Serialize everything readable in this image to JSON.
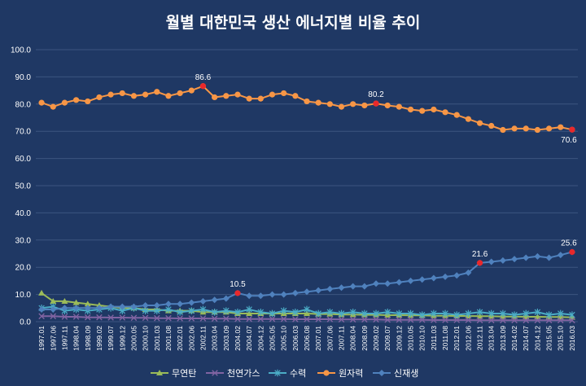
{
  "chart_data": {
    "type": "line",
    "title": "월별 대한민국 생산 에너지별 비율 추이",
    "xlabel": "",
    "ylabel": "",
    "ylim": [
      0,
      100
    ],
    "yticks": [
      "0.0",
      "10.0",
      "20.0",
      "30.0",
      "40.0",
      "50.0",
      "60.0",
      "70.0",
      "80.0",
      "90.0",
      "100.0"
    ],
    "grid": true,
    "legend_position": "bottom",
    "x_tick_labels": [
      "1997.01",
      "1997.06",
      "1997.11",
      "1998.04",
      "1998.09",
      "1999.02",
      "1999.07",
      "1999.12",
      "2000.05",
      "2000.10",
      "2001.03",
      "2001.08",
      "2002.01",
      "2002.06",
      "2002.11",
      "2003.04",
      "2003.09",
      "2004.02",
      "2004.07",
      "2004.12",
      "2005.05",
      "2005.10",
      "2006.03",
      "2006.08",
      "2007.01",
      "2007.06",
      "2007.11",
      "2008.04",
      "2008.09",
      "2009.02",
      "2009.07",
      "2009.12",
      "2010.05",
      "2010.10",
      "2011.03",
      "2011.08",
      "2012.01",
      "2012.06",
      "2012.11",
      "2013.04",
      "2013.09",
      "2014.02",
      "2014.07",
      "2014.12",
      "2015.05",
      "2015.10",
      "2016.03"
    ],
    "series": [
      {
        "name": "무연탄",
        "color": "#9bbb59",
        "marker": "triangle",
        "values": [
          10.5,
          7.5,
          7.5,
          7,
          6.5,
          6,
          5.5,
          5,
          5,
          4.5,
          4.5,
          4,
          4,
          4,
          3.5,
          3.5,
          3.5,
          3,
          3,
          3,
          3,
          3,
          3,
          3,
          2.8,
          2.8,
          2.6,
          2.6,
          2.5,
          2.5,
          2.4,
          2.4,
          2.3,
          2.3,
          2.2,
          2.2,
          2.1,
          2.1,
          2,
          2,
          1.9,
          1.9,
          1.8,
          1.8,
          1.7,
          1.7,
          1.6
        ]
      },
      {
        "name": "천연가스",
        "color": "#8064a2",
        "marker": "x",
        "values": [
          2,
          2,
          1.8,
          1.8,
          1.6,
          1.6,
          1.5,
          1.5,
          1.4,
          1.4,
          1.3,
          1.3,
          1.2,
          1.2,
          1.2,
          1.1,
          1.1,
          1,
          1,
          1,
          1,
          1,
          0.9,
          0.9,
          0.9,
          0.9,
          0.8,
          0.8,
          0.8,
          0.8,
          0.7,
          0.7,
          0.7,
          0.7,
          0.6,
          0.6,
          0.6,
          0.6,
          0.5,
          0.5,
          0.5,
          0.5,
          0.5,
          0.5,
          0.5,
          0.5,
          0.5
        ]
      },
      {
        "name": "수력",
        "color": "#4bacc6",
        "marker": "star",
        "values": [
          5,
          5.5,
          4,
          4.5,
          4,
          4.5,
          5,
          4,
          5,
          4,
          4,
          4.5,
          3.5,
          4,
          4.5,
          3.5,
          4,
          3.5,
          4.5,
          3.5,
          3,
          4,
          3.5,
          4.5,
          3,
          3.5,
          3,
          3.5,
          3,
          3,
          3.5,
          3,
          3,
          2.5,
          3,
          3,
          2.5,
          3,
          3.5,
          3,
          3,
          2.5,
          3,
          3.5,
          2.5,
          3,
          2.5
        ]
      },
      {
        "name": "원자력",
        "color": "#f79646",
        "marker": "circle",
        "values": [
          80.5,
          79,
          80.5,
          81.5,
          81,
          82.5,
          83.5,
          84,
          83,
          83.5,
          84.5,
          83,
          84,
          85,
          86.6,
          82.5,
          83,
          83.5,
          82,
          82,
          83.5,
          84,
          83,
          81,
          80.5,
          80,
          79,
          80,
          79.5,
          80.2,
          79.5,
          79,
          78,
          77.5,
          78,
          77,
          76,
          74.5,
          73,
          72,
          70.5,
          71,
          71,
          70.5,
          71,
          71.5,
          70.6
        ]
      },
      {
        "name": "신재생",
        "color": "#4f81bd",
        "marker": "diamond",
        "values": [
          4.5,
          4.5,
          5,
          5,
          5,
          5,
          5.5,
          5.5,
          5.5,
          6,
          6,
          6.5,
          6.5,
          7,
          7.5,
          8,
          8.5,
          10.5,
          9.5,
          9.5,
          10,
          10,
          10.5,
          11,
          11.5,
          12,
          12.5,
          13,
          13,
          14,
          14,
          14.5,
          15,
          15.5,
          16,
          16.5,
          17,
          18,
          21.6,
          22,
          22.5,
          23,
          23.5,
          24,
          23.5,
          24.5,
          25.6
        ]
      }
    ],
    "annotations": [
      {
        "series": "원자력",
        "x": "2002.11",
        "y": 86.6,
        "label": "86.6"
      },
      {
        "series": "원자력",
        "x": "2009.02",
        "y": 80.2,
        "label": "80.2"
      },
      {
        "series": "원자력",
        "x": "2016.03",
        "y": 70.6,
        "label": "70.6"
      },
      {
        "series": "신재생",
        "x": "2004.02",
        "y": 10.5,
        "label": "10.5"
      },
      {
        "series": "신재생",
        "x": "2012.11",
        "y": 21.6,
        "label": "21.6"
      },
      {
        "series": "신재생",
        "x": "2016.03",
        "y": 25.6,
        "label": "25.6"
      }
    ],
    "annotation_marker_color": "#e8282b",
    "colors": {
      "background": "#1f3864",
      "grid": "#3d5580",
      "text": "#ffffff"
    }
  }
}
